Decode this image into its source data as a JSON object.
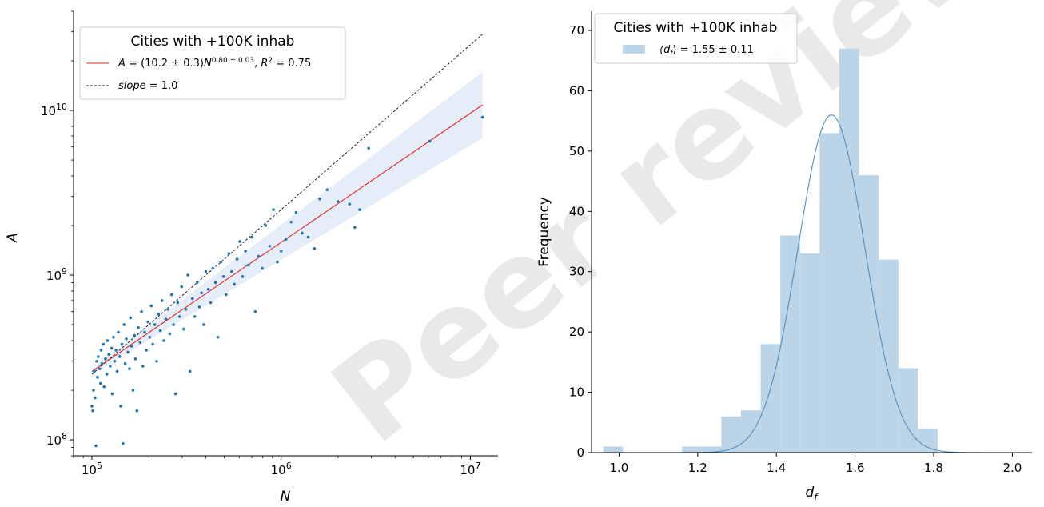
{
  "watermark": "Peer reviewed",
  "chart_data": [
    {
      "type": "scatter",
      "xlabel": "N",
      "ylabel": "A",
      "xscale": "log",
      "yscale": "log",
      "xlim": [
        80000,
        14000000
      ],
      "ylim": [
        80000000,
        40000000000
      ],
      "x_ticks": [
        {
          "value": 100000,
          "base": "10",
          "exp": "5"
        },
        {
          "value": 1000000,
          "base": "10",
          "exp": "6"
        },
        {
          "value": 10000000,
          "base": "10",
          "exp": "7"
        }
      ],
      "y_ticks": [
        {
          "value": 100000000,
          "base": "10",
          "exp": "8"
        },
        {
          "value": 1000000000,
          "base": "10",
          "exp": "9"
        },
        {
          "value": 10000000000,
          "base": "10",
          "exp": "10"
        }
      ],
      "legend": {
        "title": "Cities with +100K inhab",
        "placement": "upper-left",
        "fit_label": "A = (10.2 ± 0.3)N^{0.80 ± 0.03}, R² = 0.75",
        "fit_label_parts": {
          "pre": "A",
          "mid": " = (10.2 ± 0.3)",
          "base": "N",
          "exp": "0.80 ± 0.03",
          "post1": ", ",
          "r": "R",
          "r_exp": "2",
          "post2": " = 0.75"
        },
        "slope_label": "slope = 1.0",
        "slope_label_parts": {
          "name": "slope",
          "rest": " = 1.0"
        }
      },
      "fit": {
        "coefficient": 10.2,
        "exponent": 0.8,
        "color": "#e8251e",
        "band_color": "#e5eef8"
      },
      "slope_line": {
        "slope": 1.0,
        "from": [
          100000,
          250000000
        ],
        "color": "#222222"
      },
      "point_color": "#1f77b4",
      "points": [
        [
          100000,
          160000000
        ],
        [
          101000,
          150000000
        ],
        [
          102000,
          200000000
        ],
        [
          103000,
          260000000
        ],
        [
          104000,
          180000000
        ],
        [
          105000,
          92000000
        ],
        [
          106000,
          300000000
        ],
        [
          107000,
          240000000
        ],
        [
          108000,
          320000000
        ],
        [
          110000,
          270000000
        ],
        [
          111000,
          220000000
        ],
        [
          112000,
          350000000
        ],
        [
          113000,
          290000000
        ],
        [
          115000,
          380000000
        ],
        [
          116000,
          210000000
        ],
        [
          118000,
          310000000
        ],
        [
          120000,
          250000000
        ],
        [
          121000,
          400000000
        ],
        [
          123000,
          330000000
        ],
        [
          125000,
          280000000
        ],
        [
          127000,
          360000000
        ],
        [
          128000,
          190000000
        ],
        [
          130000,
          420000000
        ],
        [
          132000,
          300000000
        ],
        [
          134000,
          350000000
        ],
        [
          136000,
          260000000
        ],
        [
          138000,
          450000000
        ],
        [
          140000,
          320000000
        ],
        [
          142000,
          160000000
        ],
        [
          144000,
          380000000
        ],
        [
          146000,
          95000000
        ],
        [
          148000,
          500000000
        ],
        [
          150000,
          290000000
        ],
        [
          152000,
          410000000
        ],
        [
          155000,
          340000000
        ],
        [
          158000,
          270000000
        ],
        [
          160000,
          550000000
        ],
        [
          162000,
          370000000
        ],
        [
          165000,
          200000000
        ],
        [
          168000,
          430000000
        ],
        [
          170000,
          310000000
        ],
        [
          173000,
          150000000
        ],
        [
          176000,
          480000000
        ],
        [
          180000,
          390000000
        ],
        [
          183000,
          600000000
        ],
        [
          186000,
          280000000
        ],
        [
          190000,
          450000000
        ],
        [
          194000,
          350000000
        ],
        [
          198000,
          520000000
        ],
        [
          202000,
          420000000
        ],
        [
          206000,
          650000000
        ],
        [
          210000,
          380000000
        ],
        [
          215000,
          500000000
        ],
        [
          220000,
          300000000
        ],
        [
          225000,
          580000000
        ],
        [
          230000,
          460000000
        ],
        [
          235000,
          700000000
        ],
        [
          240000,
          400000000
        ],
        [
          246000,
          540000000
        ],
        [
          252000,
          620000000
        ],
        [
          258000,
          440000000
        ],
        [
          264000,
          760000000
        ],
        [
          270000,
          500000000
        ],
        [
          277000,
          190000000
        ],
        [
          284000,
          680000000
        ],
        [
          291000,
          560000000
        ],
        [
          298000,
          850000000
        ],
        [
          306000,
          470000000
        ],
        [
          314000,
          620000000
        ],
        [
          322000,
          1000000000
        ],
        [
          330000,
          260000000
        ],
        [
          340000,
          720000000
        ],
        [
          350000,
          560000000
        ],
        [
          360000,
          900000000
        ],
        [
          370000,
          640000000
        ],
        [
          380000,
          780000000
        ],
        [
          390000,
          500000000
        ],
        [
          400000,
          1050000000
        ],
        [
          412000,
          820000000
        ],
        [
          424000,
          680000000
        ],
        [
          436000,
          1100000000
        ],
        [
          450000,
          900000000
        ],
        [
          464000,
          420000000
        ],
        [
          480000,
          1200000000
        ],
        [
          496000,
          980000000
        ],
        [
          512000,
          760000000
        ],
        [
          530000,
          1350000000
        ],
        [
          548000,
          1050000000
        ],
        [
          566000,
          880000000
        ],
        [
          585000,
          1250000000
        ],
        [
          605000,
          1600000000
        ],
        [
          625000,
          980000000
        ],
        [
          648000,
          1400000000
        ],
        [
          672000,
          1150000000
        ],
        [
          700000,
          1700000000
        ],
        [
          730000,
          600000000
        ],
        [
          760000,
          1300000000
        ],
        [
          795000,
          1100000000
        ],
        [
          830000,
          2000000000
        ],
        [
          870000,
          1500000000
        ],
        [
          910000,
          2500000000
        ],
        [
          955000,
          1200000000
        ],
        [
          1000000,
          1400000000
        ],
        [
          1060000,
          1650000000
        ],
        [
          1130000,
          2100000000
        ],
        [
          1200000,
          2400000000
        ],
        [
          1290000,
          1800000000
        ],
        [
          1390000,
          1700000000
        ],
        [
          1500000,
          1450000000
        ],
        [
          1600000,
          2900000000
        ],
        [
          1750000,
          3300000000
        ],
        [
          2000000,
          2800000000
        ],
        [
          2300000,
          2700000000
        ],
        [
          2450000,
          1950000000
        ],
        [
          2600000,
          2500000000
        ],
        [
          2900000,
          5900000000
        ],
        [
          6100000,
          6500000000
        ],
        [
          11600000,
          9100000000
        ]
      ]
    },
    {
      "type": "bar",
      "subtype": "histogram",
      "xlabel": "d_f",
      "xlabel_parts": {
        "base": "d",
        "sub": "f"
      },
      "ylabel": "Frequency",
      "xlim": [
        0.93,
        2.05
      ],
      "ylim": [
        0,
        70
      ],
      "x_ticks": [
        1.0,
        1.2,
        1.4,
        1.6,
        1.8,
        2.0
      ],
      "x_tick_labels": [
        "1.0",
        "1.2",
        "1.4",
        "1.6",
        "1.8",
        "2.0"
      ],
      "y_ticks": [
        0,
        10,
        20,
        30,
        40,
        50,
        60,
        70
      ],
      "y_tick_labels": [
        "0",
        "10",
        "20",
        "30",
        "40",
        "50",
        "60",
        "70"
      ],
      "legend": {
        "title": "Cities with +100K inhab",
        "placement": "upper-left",
        "entry": "⟨d_f⟩ = 1.55 ± 0.11",
        "entry_parts": {
          "open": "⟨d",
          "sub": "f",
          "close": "⟩ = 1.55 ± 0.11"
        }
      },
      "bar_color": "#bcd4e8",
      "curve_color": "#4f8fc0",
      "bin_width": 0.05,
      "bins": [
        {
          "start": 0.96,
          "count": 1
        },
        {
          "start": 1.01,
          "count": 0
        },
        {
          "start": 1.06,
          "count": 0
        },
        {
          "start": 1.11,
          "count": 0
        },
        {
          "start": 1.16,
          "count": 1
        },
        {
          "start": 1.21,
          "count": 1
        },
        {
          "start": 1.26,
          "count": 6
        },
        {
          "start": 1.31,
          "count": 7
        },
        {
          "start": 1.36,
          "count": 18
        },
        {
          "start": 1.41,
          "count": 36
        },
        {
          "start": 1.46,
          "count": 33
        },
        {
          "start": 1.51,
          "count": 53
        },
        {
          "start": 1.56,
          "count": 67
        },
        {
          "start": 1.61,
          "count": 46
        },
        {
          "start": 1.66,
          "count": 32
        },
        {
          "start": 1.71,
          "count": 14
        },
        {
          "start": 1.76,
          "count": 4
        }
      ],
      "fit": {
        "mean": 1.54,
        "sd": 0.085,
        "peak": 56,
        "range": [
          1.0,
          1.95
        ]
      }
    }
  ]
}
